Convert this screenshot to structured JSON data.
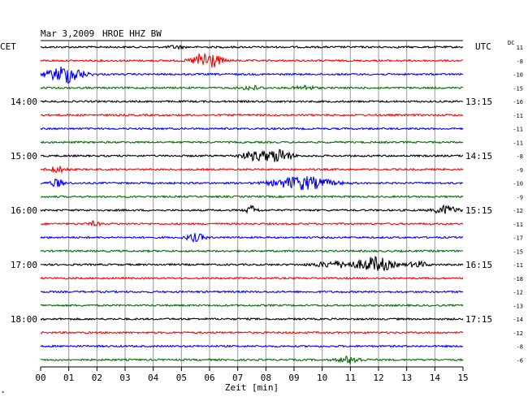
{
  "header": {
    "date": "Mar 3,2009",
    "station": "HROE HHZ BW",
    "left_zone": "CET",
    "right_zone": "UTC",
    "dc_label": "DC"
  },
  "xaxis": {
    "label": "Zeit [min]",
    "ticks": [
      "00",
      "01",
      "02",
      "03",
      "04",
      "05",
      "06",
      "07",
      "08",
      "09",
      "10",
      "11",
      "12",
      "13",
      "14",
      "15"
    ]
  },
  "footer_mark": "*",
  "chart_data": {
    "type": "line",
    "title": "Mar 3,2009   HROE HHZ BW",
    "xlabel": "Zeit [min]",
    "ylabel": "",
    "xlim": [
      0,
      15
    ],
    "grid": true,
    "row_minutes": 15,
    "color_cycle": [
      "#000000",
      "#ff0000",
      "#0000ff",
      "#007000"
    ],
    "left_hour_labels": [
      {
        "row": 4,
        "label": "14:00"
      },
      {
        "row": 8,
        "label": "15:00"
      },
      {
        "row": 12,
        "label": "16:00"
      },
      {
        "row": 16,
        "label": "17:00"
      },
      {
        "row": 20,
        "label": "18:00"
      }
    ],
    "right_hour_labels": [
      {
        "row": 4,
        "label": "13:15"
      },
      {
        "row": 8,
        "label": "14:15"
      },
      {
        "row": 12,
        "label": "15:15"
      },
      {
        "row": 16,
        "label": "16:15"
      },
      {
        "row": 20,
        "label": "17:15"
      }
    ],
    "dc_offsets": [
      "11",
      "-8",
      "-10",
      "-15",
      "-16",
      "-11",
      "-11",
      "-11",
      "-8",
      "-9",
      "-10",
      "-9",
      "-12",
      "-11",
      "-17",
      "-15",
      "-11",
      "-18",
      "-12",
      "-13",
      "-14",
      "-12",
      "-8",
      "-6"
    ],
    "events": [
      {
        "row": 0,
        "minute": 4.8,
        "amplitude": 0.2,
        "duration": 0.4
      },
      {
        "row": 1,
        "minute": 5.9,
        "amplitude": 1.3,
        "duration": 0.7
      },
      {
        "row": 2,
        "minute": 0.9,
        "amplitude": 1.2,
        "duration": 0.9
      },
      {
        "row": 3,
        "minute": 7.5,
        "amplitude": 0.3,
        "duration": 0.5
      },
      {
        "row": 3,
        "minute": 9.4,
        "amplitude": 0.3,
        "duration": 0.5
      },
      {
        "row": 9,
        "minute": 0.6,
        "amplitude": 0.4,
        "duration": 0.5
      },
      {
        "row": 8,
        "minute": 7.7,
        "amplitude": 0.6,
        "duration": 0.9
      },
      {
        "row": 8,
        "minute": 8.5,
        "amplitude": 0.8,
        "duration": 0.6
      },
      {
        "row": 10,
        "minute": 0.6,
        "amplitude": 0.5,
        "duration": 0.4
      },
      {
        "row": 10,
        "minute": 9.3,
        "amplitude": 0.9,
        "duration": 1.5
      },
      {
        "row": 12,
        "minute": 7.5,
        "amplitude": 0.6,
        "duration": 0.3
      },
      {
        "row": 12,
        "minute": 14.4,
        "amplitude": 0.6,
        "duration": 0.6
      },
      {
        "row": 13,
        "minute": 1.9,
        "amplitude": 0.3,
        "duration": 0.3
      },
      {
        "row": 14,
        "minute": 5.5,
        "amplitude": 0.5,
        "duration": 0.5
      },
      {
        "row": 16,
        "minute": 10.5,
        "amplitude": 0.4,
        "duration": 1.2
      },
      {
        "row": 16,
        "minute": 11.9,
        "amplitude": 1.0,
        "duration": 0.9
      },
      {
        "row": 16,
        "minute": 13.4,
        "amplitude": 0.4,
        "duration": 0.5
      },
      {
        "row": 23,
        "minute": 11.0,
        "amplitude": 0.5,
        "duration": 0.6
      }
    ]
  }
}
